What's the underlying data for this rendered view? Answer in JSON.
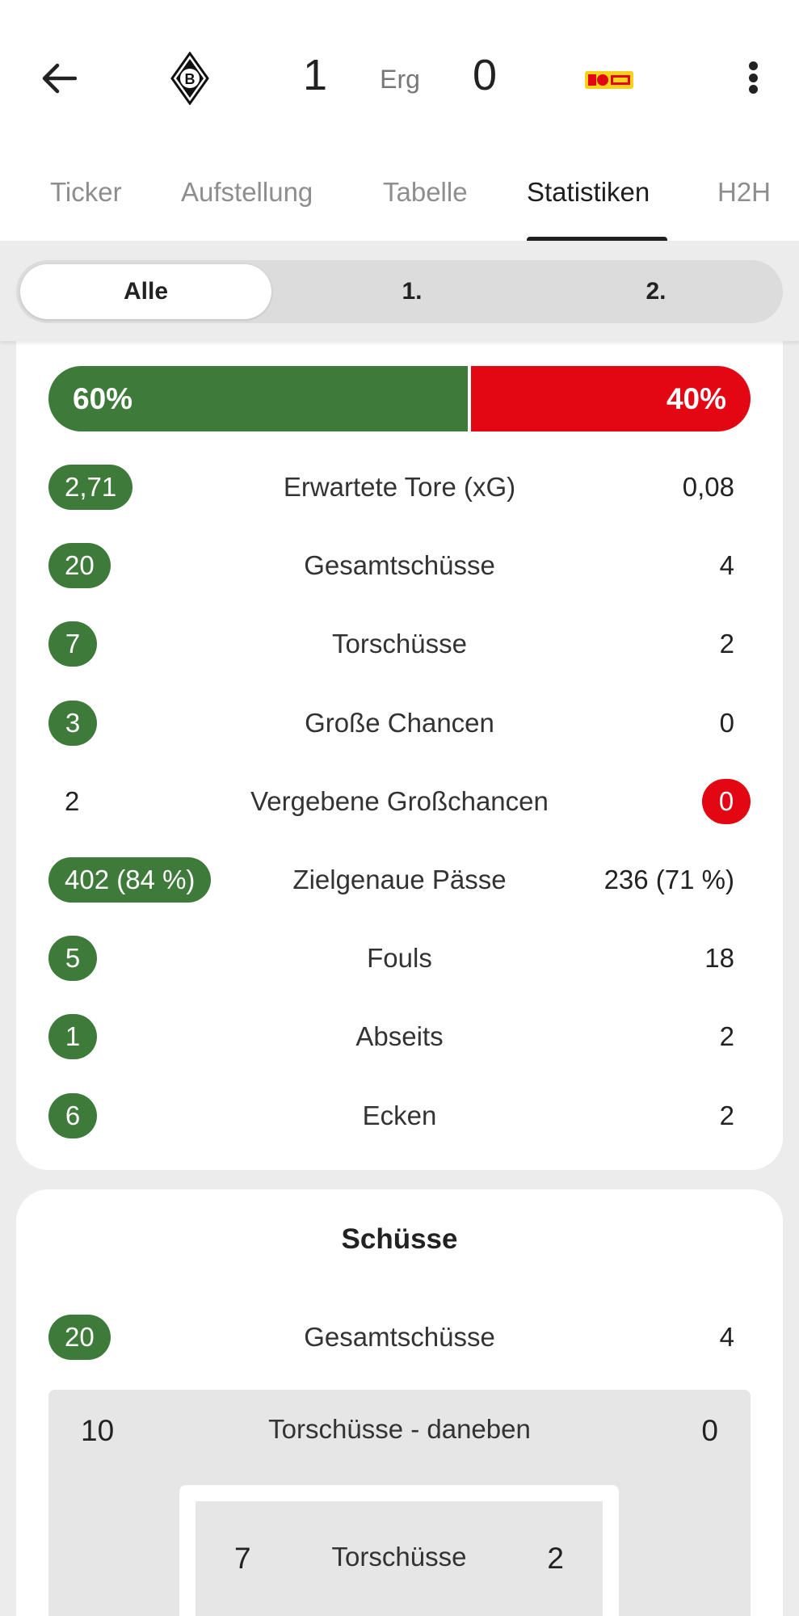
{
  "header": {
    "home_score": "1",
    "status": "Erg",
    "away_score": "0",
    "home_logo_icon": "gladbach-crest-icon",
    "away_logo_icon": "union-berlin-crest-icon"
  },
  "tabs": [
    {
      "label": "Ticker",
      "active": false
    },
    {
      "label": "Aufstellung",
      "active": false
    },
    {
      "label": "Tabelle",
      "active": false
    },
    {
      "label": "Statistiken",
      "active": true
    },
    {
      "label": "H2H",
      "active": false
    }
  ],
  "periods": [
    {
      "label": "Alle",
      "active": true
    },
    {
      "label": "1.",
      "active": false
    },
    {
      "label": "2.",
      "active": false
    }
  ],
  "colors": {
    "home": "#3e7b3a",
    "away": "#e30613"
  },
  "possession": {
    "home_label": "60%",
    "away_label": "40%",
    "home_fraction": 0.6,
    "away_fraction": 0.4
  },
  "stats": [
    {
      "label": "Erwartete Tore (xG)",
      "home": "2,71",
      "away": "0,08",
      "highlight": "home"
    },
    {
      "label": "Gesamtschüsse",
      "home": "20",
      "away": "4",
      "highlight": "home"
    },
    {
      "label": "Torschüsse",
      "home": "7",
      "away": "2",
      "highlight": "home"
    },
    {
      "label": "Große Chancen",
      "home": "3",
      "away": "0",
      "highlight": "home"
    },
    {
      "label": "Vergebene Großchancen",
      "home": "2",
      "away": "0",
      "highlight": "away"
    },
    {
      "label": "Zielgenaue Pässe",
      "home": "402 (84 %)",
      "away": "236 (71 %)",
      "highlight": "home"
    },
    {
      "label": "Fouls",
      "home": "5",
      "away": "18",
      "highlight": "home"
    },
    {
      "label": "Abseits",
      "home": "1",
      "away": "2",
      "highlight": "home"
    },
    {
      "label": "Ecken",
      "home": "6",
      "away": "2",
      "highlight": "home"
    }
  ],
  "shots": {
    "title": "Schüsse",
    "total": {
      "label": "Gesamtschüsse",
      "home": "20",
      "away": "4"
    },
    "off_target": {
      "label": "Torschüsse - daneben",
      "home": "10",
      "away": "0"
    },
    "on_target": {
      "label": "Torschüsse",
      "home": "7",
      "away": "2"
    }
  }
}
